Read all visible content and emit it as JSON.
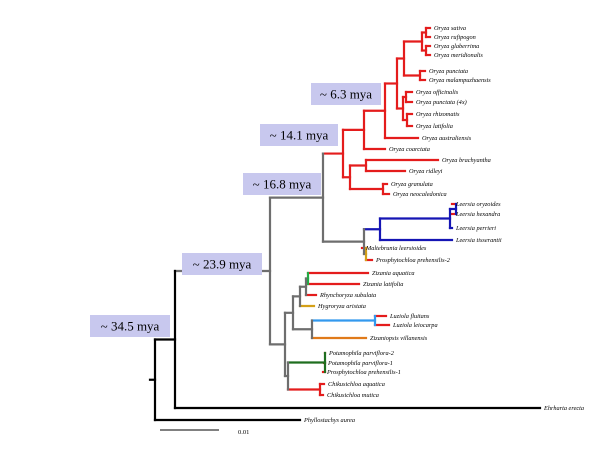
{
  "colors": {
    "red": "#e41c1c",
    "gray": "#6e6e6e",
    "black": "#000000",
    "blue": "#1515b4",
    "gold": "#d4a017",
    "green": "#22aa44",
    "lightblue": "#3399ee",
    "orange": "#e07a1a",
    "darkgreen": "#1f6e1f",
    "label_box": "#c8c8ee"
  },
  "age_labels": [
    "~ 6.3 mya",
    "~ 14.1 mya",
    "~ 16.8 mya",
    "~ 23.9 mya",
    "~ 34.5 mya"
  ],
  "taxa": [
    "Oryza sativa",
    "Oryza rufipogon",
    "Oryza glaberrima",
    "Oryza meridionalis",
    "Oryza punctata",
    "Oryza malampuzhaensis",
    "Oryza officinalis",
    "Oryza punctata (4x)",
    "Oryza rhizomatis",
    "Oryza latifolia",
    "Oryza australiensis",
    "Oryza coarctata",
    "Oryza brachyantha",
    "Oryza ridleyi",
    "Oryza granulata",
    "Oryza neocaledonica",
    "Leersia oryzoides",
    "Leersia hexandra",
    "Leersia perrieri",
    "Leersia tisserantii",
    "Maltebrunia leersioides",
    "Prosphytochloa prehensilis-2",
    "Zizania aquatica",
    "Zizania latifolia",
    "Rhynchoryza subulata",
    "Hygroryza aristata",
    "Luziola fluitans",
    "Luziola leiocarpa",
    "Zizaniopsis villanensis",
    "Potamophila parviflora-2",
    "Potamophila parviflora-1",
    "Prosphytochloa prehensilis-1",
    "Chikusichloa aquatica",
    "Chikusichloa mutica",
    "Ehrharta erecta",
    "Phyllostachys aurea"
  ],
  "scale_bar": {
    "label": "0.01"
  }
}
